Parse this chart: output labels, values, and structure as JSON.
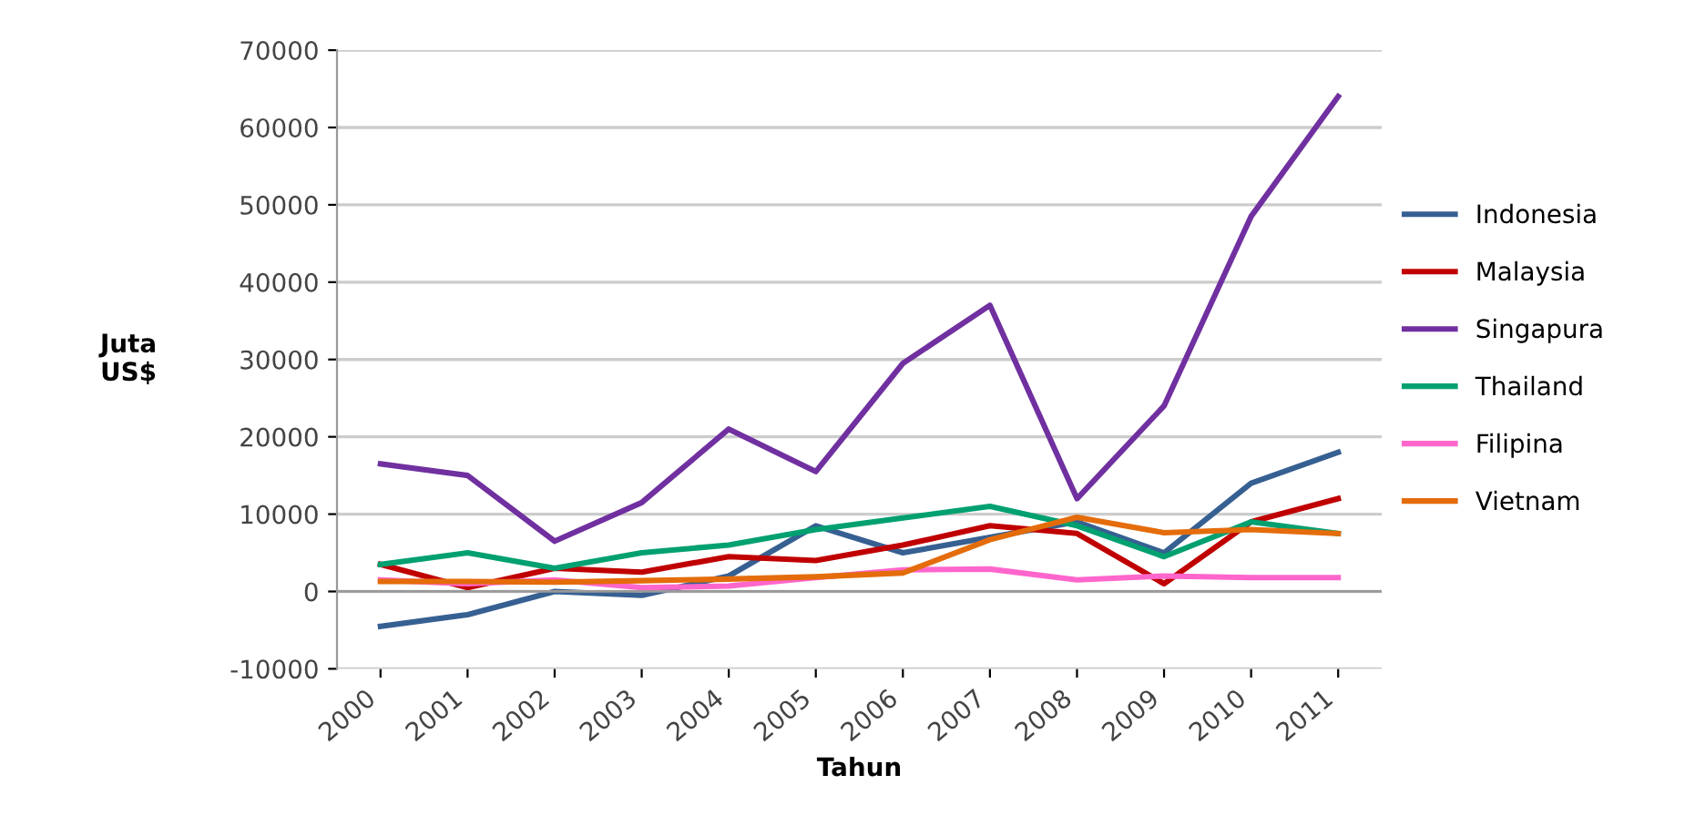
{
  "chart_data": {
    "type": "line",
    "xlabel": "Tahun",
    "ylabel": "Juta\nUS$",
    "categories": [
      "2000",
      "2001",
      "2002",
      "2003",
      "2004",
      "2005",
      "2006",
      "2007",
      "2008",
      "2009",
      "2010",
      "2011"
    ],
    "series": [
      {
        "name": "Indonesia",
        "color": "#376092",
        "values": [
          -4500,
          -3000,
          0,
          -500,
          2000,
          8500,
          5000,
          7000,
          9000,
          5000,
          14000,
          18000
        ]
      },
      {
        "name": "Malaysia",
        "color": "#c00000",
        "values": [
          3500,
          500,
          3000,
          2500,
          4500,
          4000,
          6000,
          8500,
          7500,
          1000,
          9000,
          12000
        ]
      },
      {
        "name": "Singapura",
        "color": "#7030a0",
        "values": [
          16500,
          15000,
          6500,
          11500,
          21000,
          15500,
          29500,
          37000,
          12000,
          24000,
          48500,
          64000
        ]
      },
      {
        "name": "Thailand",
        "color": "#00a070",
        "values": [
          3500,
          5000,
          3000,
          5000,
          6000,
          8000,
          9500,
          11000,
          8500,
          4500,
          9000,
          7500
        ]
      },
      {
        "name": "Filipina",
        "color": "#ff66cc",
        "values": [
          1500,
          1000,
          1500,
          500,
          700,
          1800,
          2800,
          2900,
          1500,
          2000,
          1800,
          1800
        ]
      },
      {
        "name": "Vietnam",
        "color": "#e46c0a",
        "values": [
          1300,
          1300,
          1200,
          1400,
          1600,
          1900,
          2400,
          6700,
          9600,
          7600,
          8000,
          7500
        ]
      }
    ],
    "ylim": [
      -10000,
      70000
    ],
    "yticks": [
      -10000,
      0,
      10000,
      20000,
      30000,
      40000,
      50000,
      60000,
      70000
    ],
    "grid": "y",
    "legend": "right"
  }
}
